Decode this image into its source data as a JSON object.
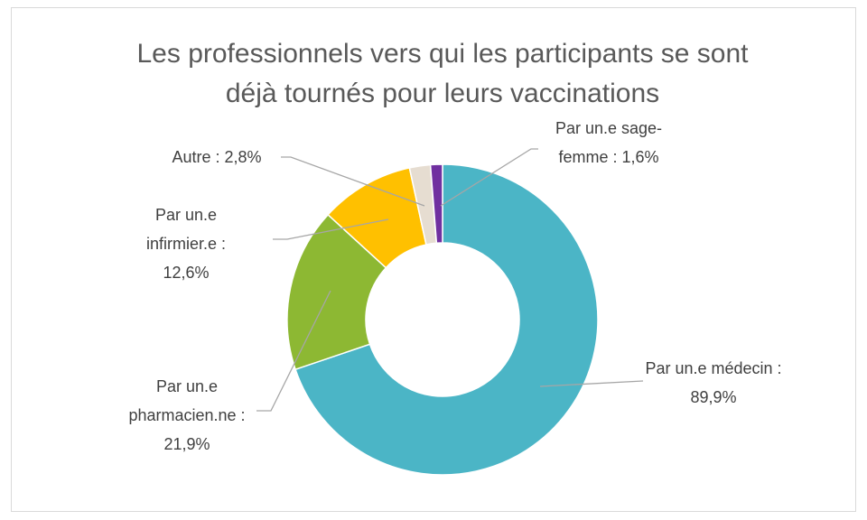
{
  "chart_data": {
    "type": "donut",
    "title": "Les professionnels vers qui les participants se sont déjà tournés pour leurs vaccinations",
    "values": [
      89.9,
      21.9,
      12.6,
      2.8,
      1.6
    ],
    "value_labels": [
      "Par un.e médecin : 89,9%",
      "Par un.e pharmacien.ne : 21,9%",
      "Par un.e infirmier.e : 12,6%",
      "Autre  : 2,8%",
      "Par un.e sage-femme :  1,6%"
    ],
    "colors": [
      "#4bb5c6",
      "#8db833",
      "#ffc000",
      "#e6ddd1",
      "#7030a0"
    ]
  }
}
